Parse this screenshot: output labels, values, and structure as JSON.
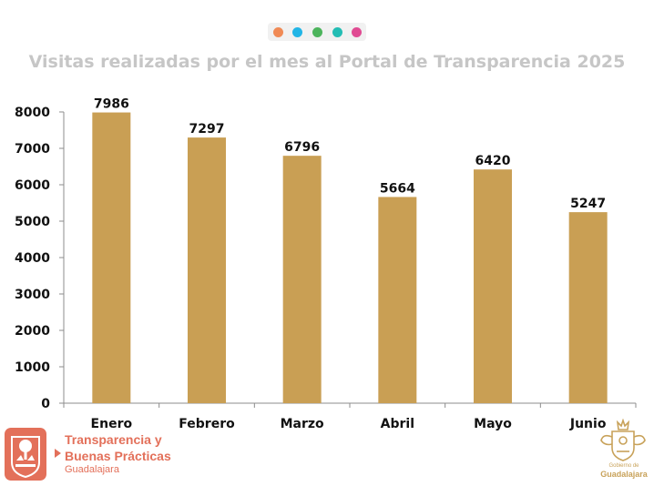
{
  "colors": {
    "bar": "#c99f54",
    "axis": "#8c8c8c",
    "title": "#c6c6c6",
    "brand": "#e3705a",
    "gov": "#c8a25a",
    "dots": [
      "#f08a55",
      "#22b5e6",
      "#4cb45c",
      "#23bdb4",
      "#e04b93"
    ]
  },
  "chart_data": {
    "type": "bar",
    "title": "Visitas realizadas por el mes al Portal de Transparencia 2025",
    "categories": [
      "Enero",
      "Febrero",
      "Marzo",
      "Abril",
      "Mayo",
      "Junio"
    ],
    "values": [
      7986,
      7297,
      6796,
      5664,
      6420,
      5247
    ],
    "ylim": [
      0,
      8000
    ],
    "yticks": [
      "0",
      "1000",
      "2000",
      "3000",
      "4000",
      "5000",
      "6000",
      "7000",
      "8000"
    ],
    "grid": false,
    "xlabel": "",
    "ylabel": ""
  },
  "footer": {
    "brand_line1": "Transparencia y",
    "brand_line2": "Buenas Prácticas",
    "brand_sub": "Guadalajara",
    "gov_small": "Gobierno de",
    "gov_big": "Guadalajara",
    "brand_logo_icon": "city-crest-icon",
    "gov_emblem_icon": "coat-of-arms-icon"
  }
}
